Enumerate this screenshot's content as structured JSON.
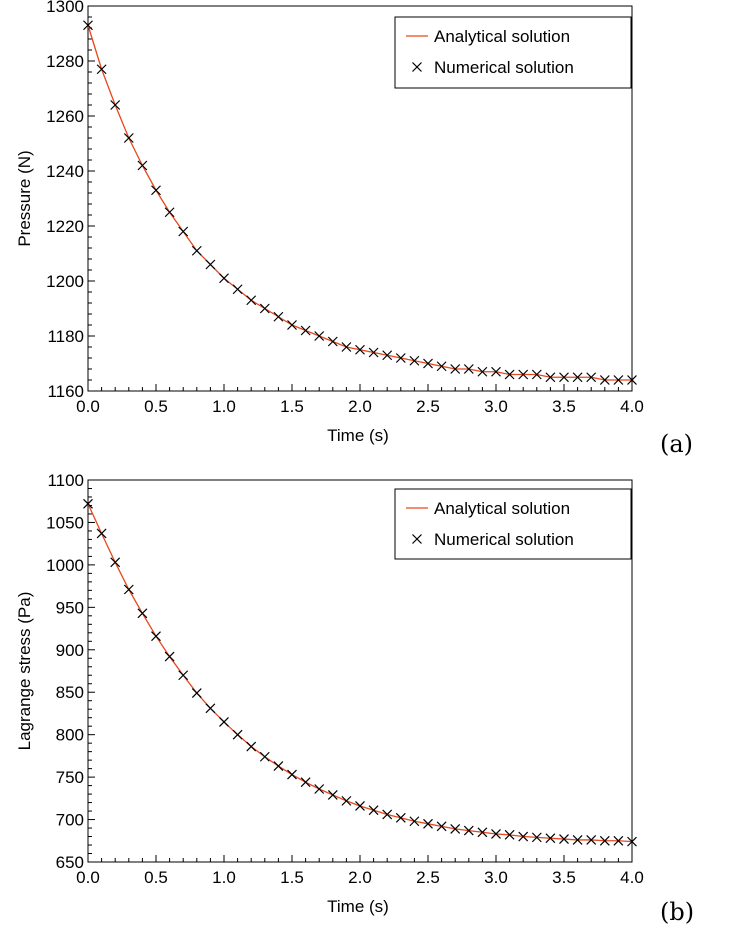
{
  "chart_data": [
    {
      "type": "line",
      "panel_label": "(a)",
      "xlabel": "Time (s)",
      "ylabel": "Pressure (N)",
      "xlim": [
        0,
        4
      ],
      "ylim": [
        1160,
        1300
      ],
      "xticks": [
        0,
        0.5,
        1,
        1.5,
        2,
        2.5,
        3,
        3.5,
        4
      ],
      "xtick_labels": [
        "0.0",
        "0.5",
        "1.0",
        "1.5",
        "2.0",
        "2.5",
        "3.0",
        "3.5",
        "4.0"
      ],
      "yticks": [
        1160,
        1180,
        1200,
        1220,
        1240,
        1260,
        1280,
        1300
      ],
      "ytick_labels": [
        "1160",
        "1180",
        "1200",
        "1220",
        "1240",
        "1260",
        "1280",
        "1300"
      ],
      "grid": false,
      "legend_position": "top-right",
      "series": [
        {
          "name": "Analytical solution",
          "style": "line",
          "color": "#e8471d",
          "x": [
            0,
            0.1,
            0.2,
            0.3,
            0.4,
            0.5,
            0.6,
            0.7,
            0.8,
            0.9,
            1.0,
            1.1,
            1.2,
            1.3,
            1.4,
            1.5,
            1.6,
            1.7,
            1.8,
            1.9,
            2.0,
            2.1,
            2.2,
            2.3,
            2.4,
            2.5,
            2.6,
            2.7,
            2.8,
            2.9,
            3.0,
            3.1,
            3.2,
            3.3,
            3.4,
            3.5,
            3.6,
            3.7,
            3.8,
            3.9,
            4.0
          ],
          "y": [
            1293,
            1277,
            1264,
            1252,
            1242,
            1233,
            1225,
            1218,
            1211,
            1206,
            1201,
            1197,
            1193,
            1190,
            1187,
            1184,
            1182,
            1180,
            1178,
            1176,
            1175,
            1174,
            1173,
            1172,
            1171,
            1170,
            1169,
            1168,
            1168,
            1167,
            1167,
            1166,
            1166,
            1166,
            1165,
            1165,
            1165,
            1165,
            1164,
            1164,
            1164
          ]
        },
        {
          "name": "Numerical solution",
          "style": "marker-x",
          "color": "#000000",
          "x": [
            0,
            0.1,
            0.2,
            0.3,
            0.4,
            0.5,
            0.6,
            0.7,
            0.8,
            0.9,
            1.0,
            1.1,
            1.2,
            1.3,
            1.4,
            1.5,
            1.6,
            1.7,
            1.8,
            1.9,
            2.0,
            2.1,
            2.2,
            2.3,
            2.4,
            2.5,
            2.6,
            2.7,
            2.8,
            2.9,
            3.0,
            3.1,
            3.2,
            3.3,
            3.4,
            3.5,
            3.6,
            3.7,
            3.8,
            3.9,
            4.0
          ],
          "y": [
            1293,
            1277,
            1264,
            1252,
            1242,
            1233,
            1225,
            1218,
            1211,
            1206,
            1201,
            1197,
            1193,
            1190,
            1187,
            1184,
            1182,
            1180,
            1178,
            1176,
            1175,
            1174,
            1173,
            1172,
            1171,
            1170,
            1169,
            1168,
            1168,
            1167,
            1167,
            1166,
            1166,
            1166,
            1165,
            1165,
            1165,
            1165,
            1164,
            1164,
            1164
          ]
        }
      ]
    },
    {
      "type": "line",
      "panel_label": "(b)",
      "xlabel": "Time (s)",
      "ylabel": "Lagrange stress (Pa)",
      "xlim": [
        0,
        4
      ],
      "ylim": [
        650,
        1100
      ],
      "xticks": [
        0,
        0.5,
        1,
        1.5,
        2,
        2.5,
        3,
        3.5,
        4
      ],
      "xtick_labels": [
        "0.0",
        "0.5",
        "1.0",
        "1.5",
        "2.0",
        "2.5",
        "3.0",
        "3.5",
        "4.0"
      ],
      "yticks": [
        650,
        700,
        750,
        800,
        850,
        900,
        950,
        1000,
        1050,
        1100
      ],
      "ytick_labels": [
        "650",
        "700",
        "750",
        "800",
        "850",
        "900",
        "950",
        "1000",
        "1050",
        "1100"
      ],
      "grid": false,
      "legend_position": "top-right",
      "series": [
        {
          "name": "Analytical solution",
          "style": "line",
          "color": "#e8471d",
          "x": [
            0,
            0.1,
            0.2,
            0.3,
            0.4,
            0.5,
            0.6,
            0.7,
            0.8,
            0.9,
            1.0,
            1.1,
            1.2,
            1.3,
            1.4,
            1.5,
            1.6,
            1.7,
            1.8,
            1.9,
            2.0,
            2.1,
            2.2,
            2.3,
            2.4,
            2.5,
            2.6,
            2.7,
            2.8,
            2.9,
            3.0,
            3.1,
            3.2,
            3.3,
            3.4,
            3.5,
            3.6,
            3.7,
            3.8,
            3.9,
            4.0
          ],
          "y": [
            1072,
            1037,
            1003,
            971,
            943,
            916,
            892,
            870,
            849,
            831,
            815,
            800,
            786,
            774,
            763,
            753,
            744,
            736,
            729,
            722,
            716,
            711,
            706,
            702,
            698,
            695,
            692,
            689,
            687,
            685,
            683,
            682,
            680,
            679,
            678,
            677,
            676,
            676,
            675,
            675,
            674
          ]
        },
        {
          "name": "Numerical solution",
          "style": "marker-x",
          "color": "#000000",
          "x": [
            0,
            0.1,
            0.2,
            0.3,
            0.4,
            0.5,
            0.6,
            0.7,
            0.8,
            0.9,
            1.0,
            1.1,
            1.2,
            1.3,
            1.4,
            1.5,
            1.6,
            1.7,
            1.8,
            1.9,
            2.0,
            2.1,
            2.2,
            2.3,
            2.4,
            2.5,
            2.6,
            2.7,
            2.8,
            2.9,
            3.0,
            3.1,
            3.2,
            3.3,
            3.4,
            3.5,
            3.6,
            3.7,
            3.8,
            3.9,
            4.0
          ],
          "y": [
            1072,
            1037,
            1003,
            971,
            943,
            916,
            892,
            870,
            849,
            831,
            815,
            800,
            786,
            774,
            763,
            753,
            744,
            736,
            729,
            722,
            716,
            711,
            706,
            702,
            698,
            695,
            692,
            689,
            687,
            685,
            683,
            682,
            680,
            679,
            678,
            677,
            676,
            676,
            675,
            675,
            674
          ]
        }
      ]
    }
  ]
}
